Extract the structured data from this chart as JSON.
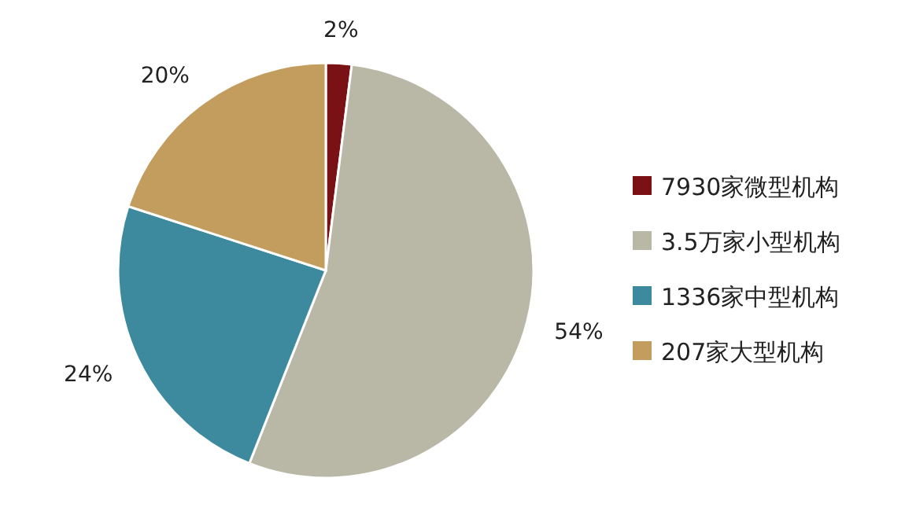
{
  "chart_data": {
    "type": "pie",
    "categories": [
      "7930家微型机构",
      "3.5万家小型机构",
      "1336家中型机构",
      "207家大型机构"
    ],
    "values": [
      2,
      54,
      24,
      20
    ],
    "value_labels": [
      "2%",
      "54%",
      "24%",
      "20%"
    ],
    "colors": [
      "#7a1114",
      "#b9b8a6",
      "#3d8a9e",
      "#c29d5e"
    ],
    "legend": "right"
  }
}
